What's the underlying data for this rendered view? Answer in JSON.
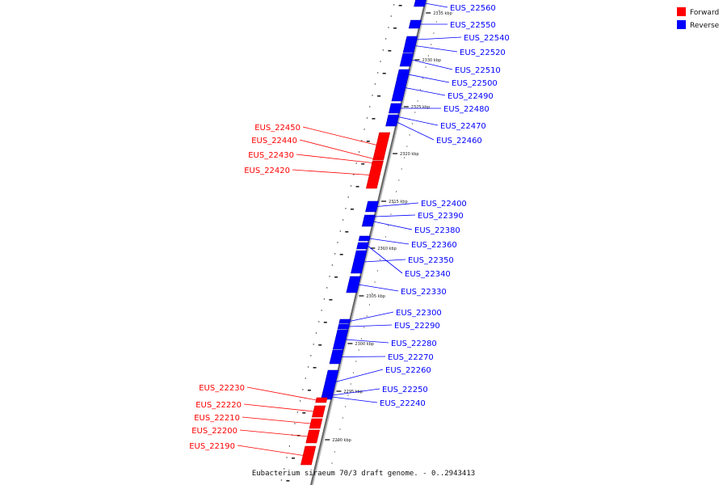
{
  "legend": {
    "forward_label": "Forward",
    "reverse_label": "Reverse",
    "forward_color": "#ff0000",
    "reverse_color": "#0000ff"
  },
  "caption": "Eubacterium siraeum 70/3 draft genome. - 0..2943413",
  "kbp_ticks": [
    "2335 kbp",
    "2330 kbp",
    "2325 kbp",
    "2320 kbp",
    "2315 kbp",
    "2310 kbp",
    "2305 kbp",
    "2300 kbp",
    "2295 kbp",
    "2290 kbp"
  ],
  "genes": [
    {
      "id": "EUS_22560",
      "strand": "reverse"
    },
    {
      "id": "EUS_22550",
      "strand": "reverse"
    },
    {
      "id": "EUS_22540",
      "strand": "reverse"
    },
    {
      "id": "EUS_22520",
      "strand": "reverse"
    },
    {
      "id": "EUS_22510",
      "strand": "reverse"
    },
    {
      "id": "EUS_22500",
      "strand": "reverse"
    },
    {
      "id": "EUS_22490",
      "strand": "reverse"
    },
    {
      "id": "EUS_22480",
      "strand": "reverse"
    },
    {
      "id": "EUS_22470",
      "strand": "reverse"
    },
    {
      "id": "EUS_22460",
      "strand": "reverse"
    },
    {
      "id": "EUS_22450",
      "strand": "forward"
    },
    {
      "id": "EUS_22440",
      "strand": "forward"
    },
    {
      "id": "EUS_22430",
      "strand": "forward"
    },
    {
      "id": "EUS_22420",
      "strand": "forward"
    },
    {
      "id": "EUS_22400",
      "strand": "reverse"
    },
    {
      "id": "EUS_22390",
      "strand": "reverse"
    },
    {
      "id": "EUS_22380",
      "strand": "reverse"
    },
    {
      "id": "EUS_22360",
      "strand": "reverse"
    },
    {
      "id": "EUS_22350",
      "strand": "reverse"
    },
    {
      "id": "EUS_22340",
      "strand": "reverse"
    },
    {
      "id": "EUS_22330",
      "strand": "reverse"
    },
    {
      "id": "EUS_22300",
      "strand": "reverse"
    },
    {
      "id": "EUS_22290",
      "strand": "reverse"
    },
    {
      "id": "EUS_22280",
      "strand": "reverse"
    },
    {
      "id": "EUS_22270",
      "strand": "reverse"
    },
    {
      "id": "EUS_22260",
      "strand": "reverse"
    },
    {
      "id": "EUS_22250",
      "strand": "reverse"
    },
    {
      "id": "EUS_22240",
      "strand": "reverse"
    },
    {
      "id": "EUS_22230",
      "strand": "forward"
    },
    {
      "id": "EUS_22220",
      "strand": "forward"
    },
    {
      "id": "EUS_22210",
      "strand": "forward"
    },
    {
      "id": "EUS_22200",
      "strand": "forward"
    },
    {
      "id": "EUS_22190",
      "strand": "forward"
    }
  ]
}
